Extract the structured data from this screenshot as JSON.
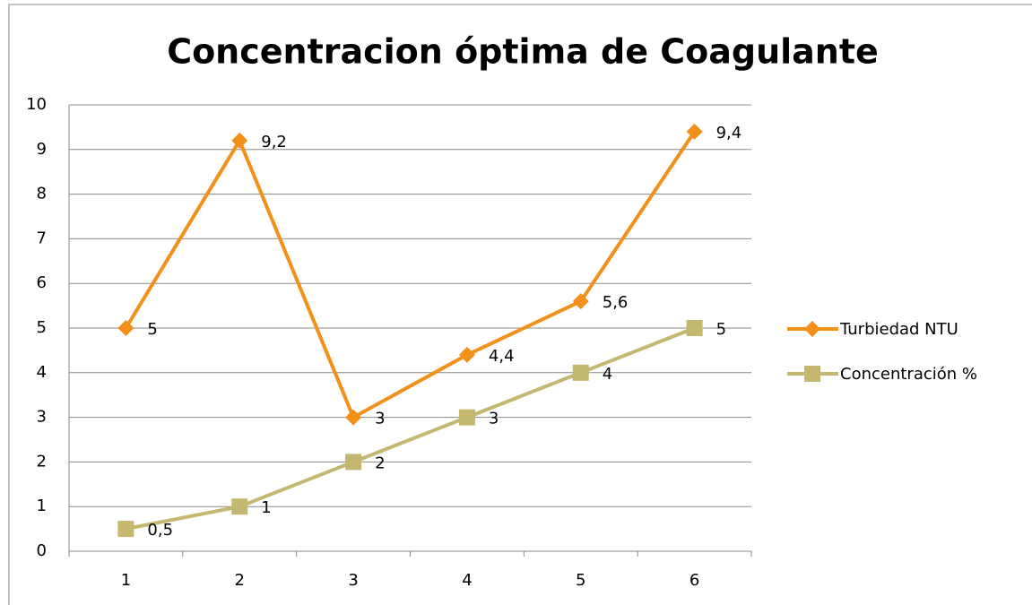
{
  "chart_data": {
    "type": "line",
    "title": "Concentracion óptima de Coagulante",
    "categories": [
      1,
      2,
      3,
      4,
      5,
      6
    ],
    "series": [
      {
        "name": "Turbiedad NTU",
        "color": "#f39019",
        "marker": "diamond",
        "values": [
          5,
          9.2,
          3,
          4.4,
          5.6,
          9.4
        ],
        "value_labels": [
          "5",
          "9,2",
          "3",
          "4,4",
          "5,6",
          "9,4"
        ]
      },
      {
        "name": "Concentración %",
        "color": "#c4b870",
        "marker": "square",
        "values": [
          0.5,
          1,
          2,
          3,
          4,
          5
        ],
        "value_labels": [
          "0,5",
          "1",
          "2",
          "3",
          "4",
          "5"
        ]
      }
    ],
    "ylim": [
      0,
      10
    ],
    "yticks": [
      0,
      1,
      2,
      3,
      4,
      5,
      6,
      7,
      8,
      9,
      10
    ],
    "grid": true,
    "legend": "right"
  }
}
